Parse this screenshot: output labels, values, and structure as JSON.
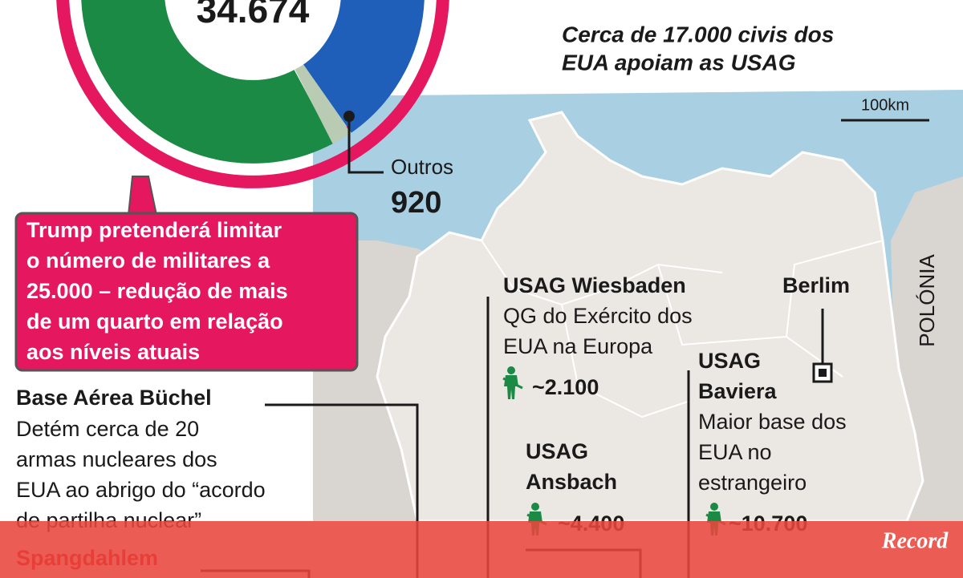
{
  "total": "34.674",
  "civilians": [
    "Cerca de 17.000 civis dos",
    "EUA apoiam as USAG"
  ],
  "scale": "100km",
  "others": {
    "label": "Outros",
    "value": "920"
  },
  "callout": [
    "Trump pretenderá limitar",
    "o número de militares a",
    "25.000 – redução de mais",
    "de um quarto em relação",
    "aos níveis atuais"
  ],
  "buchel": {
    "title": "Base Aérea Büchel",
    "lines": [
      "Detém cerca de 20",
      "armas nucleares dos",
      "EUA ao abrigo do “acordo",
      "de partilha nuclear”"
    ]
  },
  "spangdahlem": "Spangdahlem",
  "wiesbaden": {
    "title": "USAG Wiesbaden",
    "lines": [
      "QG do Exército dos",
      "EUA na Europa"
    ],
    "troops": "~2.100"
  },
  "berlin": "Berlim",
  "poland": "POLÓNIA",
  "baviera": {
    "title": [
      "USAG",
      "Baviera"
    ],
    "lines": [
      "Maior base dos",
      "EUA no",
      "estrangeiro"
    ],
    "troops": "~10.700"
  },
  "ansbach": {
    "title": [
      "USAG",
      "Ansbach"
    ],
    "troops": "~4.400"
  },
  "brand": "Record"
}
